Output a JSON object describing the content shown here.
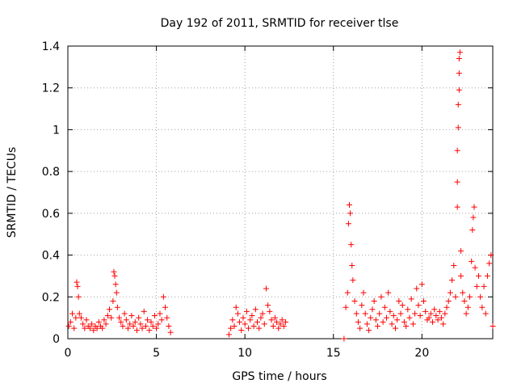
{
  "chart_data": {
    "type": "scatter",
    "title": "Day 192 of 2011, SRMTID for receiver tlse",
    "xlabel": "GPS time / hours",
    "ylabel": "SRMTID / TECUs",
    "xlim": [
      0,
      24
    ],
    "ylim": [
      0,
      1.4
    ],
    "xticks": [
      0,
      5,
      10,
      15,
      20
    ],
    "xtick_labels": [
      "0",
      "5",
      "10",
      "15",
      "20"
    ],
    "yticks": [
      0,
      0.2,
      0.4,
      0.6,
      0.8,
      1.0,
      1.2,
      1.4
    ],
    "ytick_labels": [
      "0",
      "0.2",
      "0.4",
      "0.6",
      "0.8",
      "1",
      "1.2",
      "1.4"
    ],
    "grid": true,
    "marker": "+",
    "marker_color": "#ff0000",
    "series": [
      {
        "name": "SRMTID",
        "x": [
          0.05,
          0.15,
          0.25,
          0.35,
          0.45,
          0.5,
          0.55,
          0.6,
          0.65,
          0.75,
          0.85,
          0.95,
          1.05,
          1.15,
          1.25,
          1.35,
          1.45,
          1.55,
          1.65,
          1.75,
          1.85,
          1.95,
          2.05,
          2.15,
          2.25,
          2.35,
          2.45,
          2.55,
          2.6,
          2.65,
          2.7,
          2.75,
          2.8,
          2.9,
          3.0,
          3.1,
          3.2,
          3.3,
          3.4,
          3.5,
          3.6,
          3.7,
          3.8,
          3.9,
          4.0,
          4.1,
          4.2,
          4.3,
          4.4,
          4.5,
          4.6,
          4.7,
          4.8,
          4.9,
          5.0,
          5.1,
          5.2,
          5.3,
          5.4,
          5.5,
          5.6,
          5.7,
          5.8,
          9.1,
          9.2,
          9.3,
          9.4,
          9.5,
          9.6,
          9.7,
          9.8,
          9.9,
          10.0,
          10.1,
          10.2,
          10.3,
          10.4,
          10.5,
          10.6,
          10.7,
          10.8,
          10.9,
          11.0,
          11.1,
          11.2,
          11.3,
          11.4,
          11.5,
          11.6,
          11.7,
          11.8,
          11.9,
          12.0,
          12.1,
          12.2,
          12.3,
          15.6,
          15.7,
          15.8,
          15.85,
          15.9,
          15.95,
          16.0,
          16.05,
          16.1,
          16.2,
          16.3,
          16.4,
          16.5,
          16.6,
          16.7,
          16.8,
          16.9,
          17.0,
          17.1,
          17.2,
          17.3,
          17.4,
          17.5,
          17.6,
          17.7,
          17.8,
          17.9,
          18.0,
          18.1,
          18.2,
          18.3,
          18.4,
          18.5,
          18.6,
          18.7,
          18.8,
          18.9,
          19.0,
          19.1,
          19.2,
          19.3,
          19.4,
          19.5,
          19.6,
          19.7,
          19.8,
          19.9,
          20.0,
          20.1,
          20.2,
          20.3,
          20.4,
          20.5,
          20.6,
          20.7,
          20.8,
          20.9,
          21.0,
          21.1,
          21.2,
          21.3,
          21.4,
          21.5,
          21.6,
          21.7,
          21.8,
          21.9,
          22.0,
          22.0,
          22.0,
          22.05,
          22.05,
          22.1,
          22.1,
          22.1,
          22.15,
          22.2,
          22.2,
          22.3,
          22.4,
          22.5,
          22.6,
          22.7,
          22.8,
          22.85,
          22.9,
          22.95,
          23.0,
          23.1,
          23.2,
          23.3,
          23.4,
          23.5,
          23.6,
          23.7,
          23.8,
          23.9,
          24.0
        ],
        "y": [
          0.06,
          0.08,
          0.12,
          0.05,
          0.1,
          0.27,
          0.25,
          0.2,
          0.12,
          0.1,
          0.07,
          0.05,
          0.09,
          0.06,
          0.05,
          0.07,
          0.04,
          0.06,
          0.05,
          0.08,
          0.06,
          0.05,
          0.09,
          0.07,
          0.11,
          0.14,
          0.1,
          0.18,
          0.32,
          0.3,
          0.26,
          0.22,
          0.15,
          0.1,
          0.08,
          0.06,
          0.12,
          0.09,
          0.05,
          0.07,
          0.11,
          0.06,
          0.08,
          0.04,
          0.1,
          0.07,
          0.05,
          0.13,
          0.06,
          0.09,
          0.04,
          0.08,
          0.06,
          0.11,
          0.05,
          0.07,
          0.12,
          0.09,
          0.2,
          0.15,
          0.1,
          0.06,
          0.03,
          0.02,
          0.05,
          0.09,
          0.06,
          0.15,
          0.12,
          0.08,
          0.04,
          0.1,
          0.07,
          0.13,
          0.05,
          0.09,
          0.11,
          0.06,
          0.14,
          0.08,
          0.05,
          0.1,
          0.12,
          0.07,
          0.24,
          0.16,
          0.13,
          0.09,
          0.06,
          0.1,
          0.08,
          0.05,
          0.07,
          0.09,
          0.06,
          0.08,
          0.0,
          0.15,
          0.22,
          0.55,
          0.64,
          0.6,
          0.45,
          0.35,
          0.28,
          0.18,
          0.12,
          0.08,
          0.05,
          0.16,
          0.22,
          0.12,
          0.07,
          0.04,
          0.1,
          0.14,
          0.18,
          0.09,
          0.06,
          0.12,
          0.2,
          0.08,
          0.15,
          0.1,
          0.22,
          0.13,
          0.07,
          0.11,
          0.05,
          0.09,
          0.18,
          0.12,
          0.16,
          0.08,
          0.06,
          0.14,
          0.1,
          0.19,
          0.07,
          0.12,
          0.24,
          0.16,
          0.11,
          0.26,
          0.18,
          0.13,
          0.09,
          0.1,
          0.12,
          0.08,
          0.14,
          0.11,
          0.09,
          0.13,
          0.1,
          0.07,
          0.12,
          0.15,
          0.18,
          0.22,
          0.28,
          0.35,
          0.2,
          0.63,
          0.75,
          0.9,
          1.01,
          1.12,
          1.19,
          1.27,
          1.34,
          1.37,
          0.42,
          0.3,
          0.22,
          0.18,
          0.12,
          0.15,
          0.2,
          0.37,
          0.52,
          0.58,
          0.63,
          0.34,
          0.25,
          0.3,
          0.2,
          0.15,
          0.25,
          0.12,
          0.3,
          0.36,
          0.4,
          0.06
        ]
      }
    ]
  }
}
